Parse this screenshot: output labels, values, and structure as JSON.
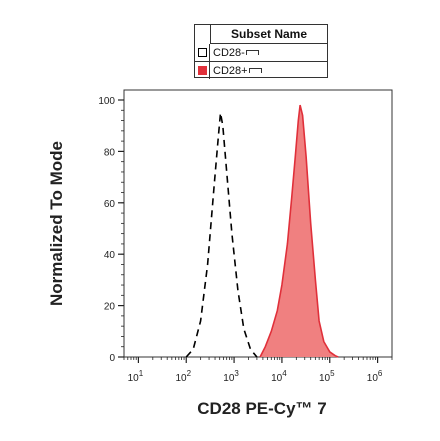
{
  "chart_data": {
    "type": "area",
    "xlabel": "CD28 PE-Cy™ 7",
    "ylabel": "Normalized To Mode",
    "xscale": "log",
    "xlim": [
      5,
      2000000
    ],
    "ylim": [
      0,
      100
    ],
    "yticks": [
      0,
      20,
      40,
      60,
      80,
      100
    ],
    "xticks": [
      {
        "value": 10,
        "mantissa": "10",
        "exp": "1"
      },
      {
        "value": 100,
        "mantissa": "10",
        "exp": "2"
      },
      {
        "value": 1000,
        "mantissa": "10",
        "exp": "3"
      },
      {
        "value": 10000,
        "mantissa": "10",
        "exp": "4"
      },
      {
        "value": 100000,
        "mantissa": "10",
        "exp": "5"
      },
      {
        "value": 1000000,
        "mantissa": "10",
        "exp": "6"
      }
    ],
    "legend": {
      "title": "Subset Name",
      "placement": "top-center"
    },
    "series": [
      {
        "name": "CD28-",
        "style": "dashed-outline",
        "color": "#000000",
        "x": [
          100,
          140,
          200,
          280,
          380,
          470,
          520,
          580,
          700,
          900,
          1200,
          1600,
          2200,
          3000
        ],
        "y": [
          0,
          3,
          14,
          36,
          66,
          86,
          95,
          90,
          72,
          48,
          26,
          11,
          3,
          0
        ]
      },
      {
        "name": "CD28+",
        "style": "filled",
        "color": "#f08080",
        "stroke": "#e0303a",
        "x": [
          3500,
          4500,
          6000,
          8000,
          10000,
          13000,
          16000,
          19000,
          22000,
          24000,
          27000,
          32000,
          40000,
          50000,
          60000,
          75000,
          100000,
          130000,
          150000
        ],
        "y": [
          0,
          4,
          10,
          18,
          28,
          44,
          62,
          78,
          92,
          98,
          94,
          78,
          52,
          30,
          14,
          6,
          2,
          0.5,
          0
        ]
      }
    ]
  }
}
